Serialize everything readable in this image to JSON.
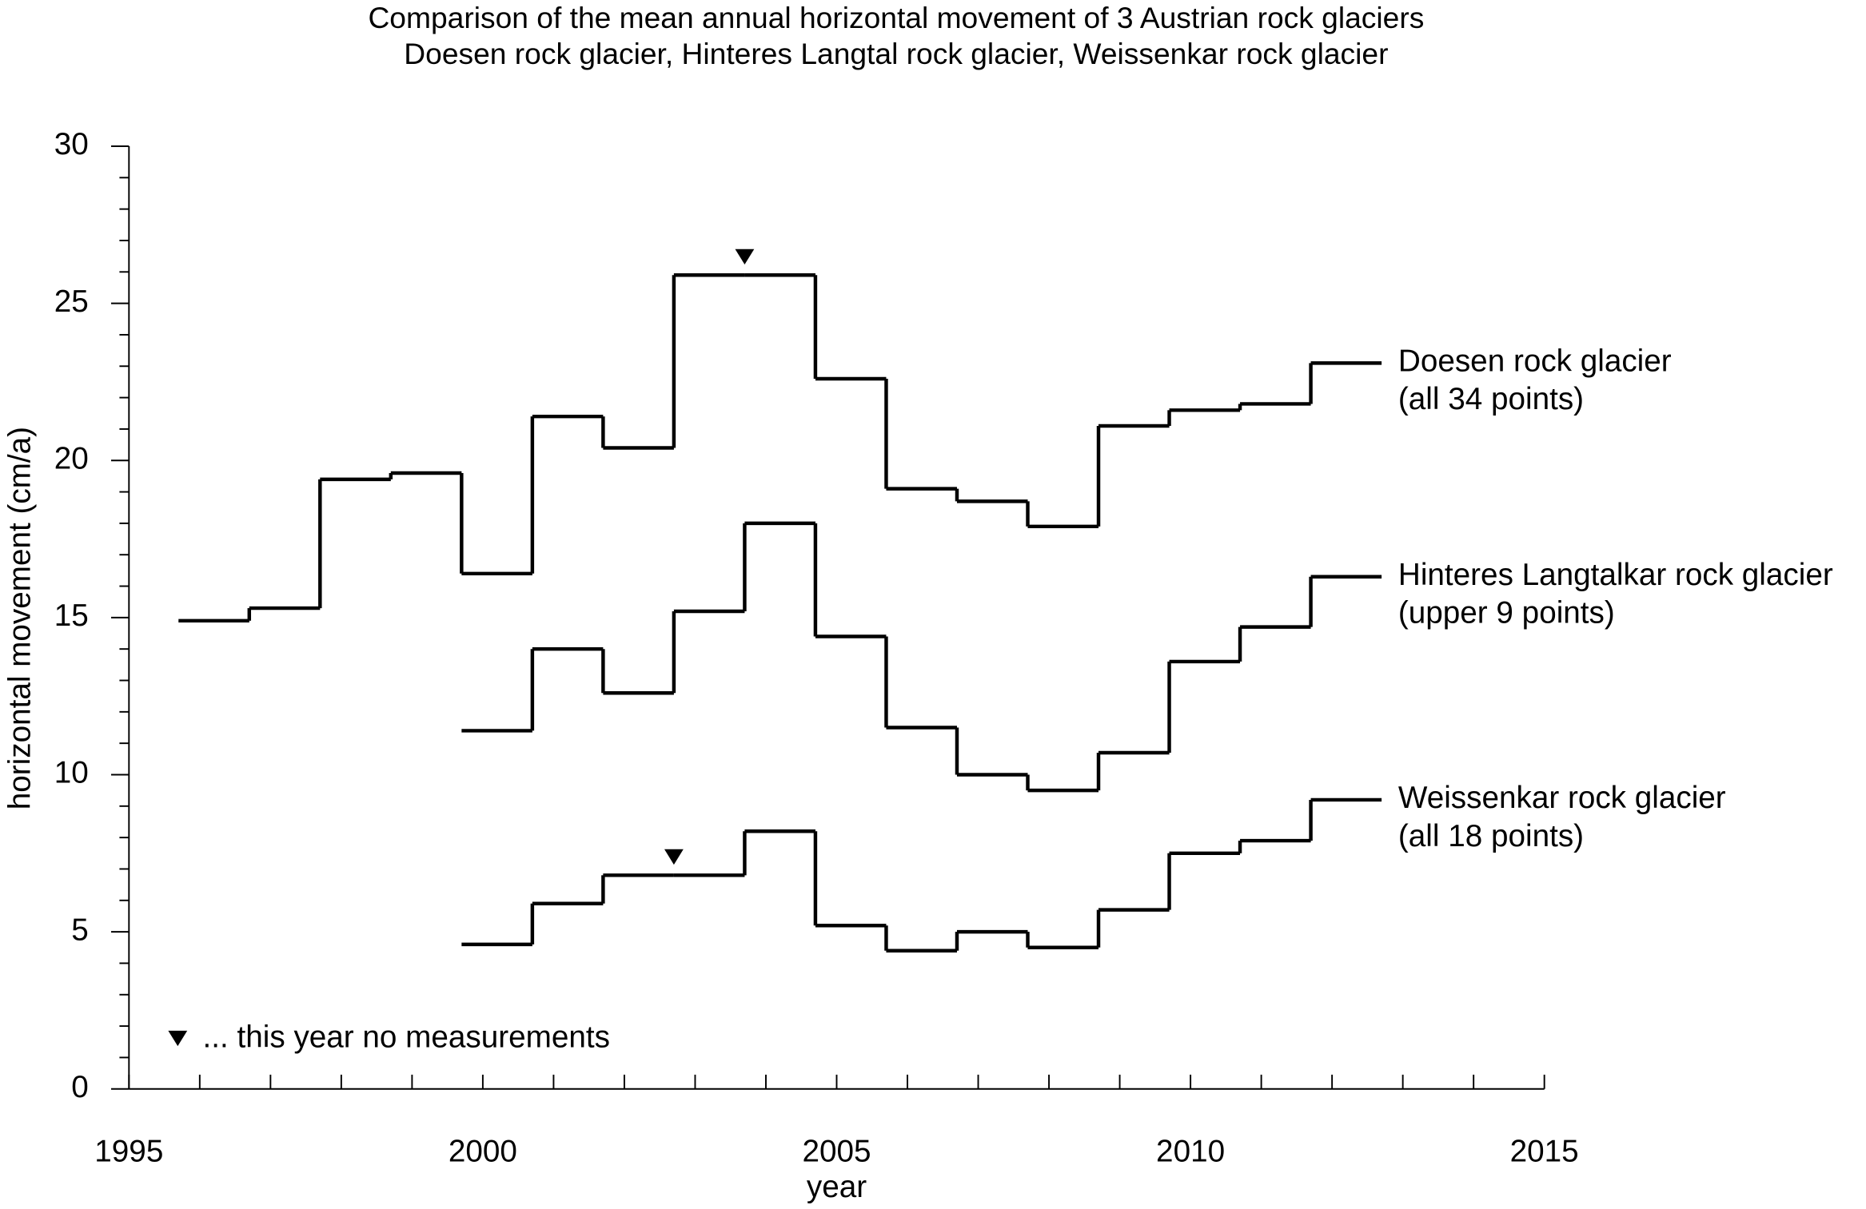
{
  "chart_data": {
    "type": "step",
    "title": "Comparison of the mean annual horizontal movement of 3 Austrian rock glaciers",
    "subtitle": "Doesen rock glacier, Hinteres Langtal rock glacier, Weissenkar rock glacier",
    "xlabel": "year",
    "ylabel": "horizontal movement (cm/a)",
    "xlim": [
      1995,
      2015
    ],
    "xticks": [
      1995,
      2000,
      2005,
      2010,
      2015
    ],
    "xminorticks": [
      1996,
      1997,
      1998,
      1999,
      2001,
      2002,
      2003,
      2004,
      2006,
      2007,
      2008,
      2009,
      2011,
      2012,
      2013,
      2014
    ],
    "ylim": [
      0,
      30
    ],
    "yticks": [
      0,
      5,
      10,
      15,
      20,
      25,
      30
    ],
    "yminorticks": [
      1,
      2,
      3,
      4,
      6,
      7,
      8,
      9,
      11,
      12,
      13,
      14,
      16,
      17,
      18,
      19,
      21,
      22,
      23,
      24,
      26,
      27,
      28,
      29
    ],
    "series": [
      {
        "name": "Doesen rock glacier",
        "description": "(all 34 points)",
        "color": "#000000",
        "bins": [
          1995.7,
          1996.7,
          1997.7,
          1998.7,
          1999.7,
          2000.7,
          2001.7,
          2002.7,
          2003.7,
          2004.7,
          2005.7,
          2006.7,
          2007.7,
          2008.7,
          2009.7,
          2010.7,
          2011.7,
          2012.7
        ],
        "values": [
          14.9,
          15.3,
          19.4,
          19.6,
          16.4,
          21.4,
          20.4,
          25.9,
          25.9,
          22.6,
          19.1,
          18.7,
          17.9,
          21.1,
          21.6,
          21.8,
          23.1
        ]
      },
      {
        "name": "Hinteres Langtalkar rock glacier",
        "description": "(upper 9 points)",
        "color": "#000000",
        "bins": [
          1999.7,
          2000.7,
          2001.7,
          2002.7,
          2003.7,
          2004.7,
          2005.7,
          2006.7,
          2007.7,
          2008.7,
          2009.7,
          2010.7,
          2011.7,
          2012.7
        ],
        "values": [
          11.4,
          14.0,
          12.6,
          15.2,
          18.0,
          14.4,
          11.5,
          10.0,
          9.5,
          10.7,
          13.6,
          14.7,
          16.3
        ]
      },
      {
        "name": "Weissenkar rock glacier",
        "description": "(all 18 points)",
        "color": "#000000",
        "bins": [
          1999.7,
          2000.7,
          2001.7,
          2002.7,
          2003.7,
          2004.7,
          2005.7,
          2006.7,
          2007.7,
          2008.7,
          2009.7,
          2010.7,
          2011.7,
          2012.7
        ],
        "values": [
          4.6,
          5.9,
          6.8,
          6.8,
          8.2,
          5.2,
          4.4,
          5.0,
          4.5,
          5.7,
          7.5,
          7.9,
          9.2
        ]
      }
    ],
    "markers": {
      "x": [
        2003.7,
        2002.7
      ],
      "y": [
        26.5,
        7.4
      ]
    },
    "marker_legend": "... this year no measurements"
  }
}
